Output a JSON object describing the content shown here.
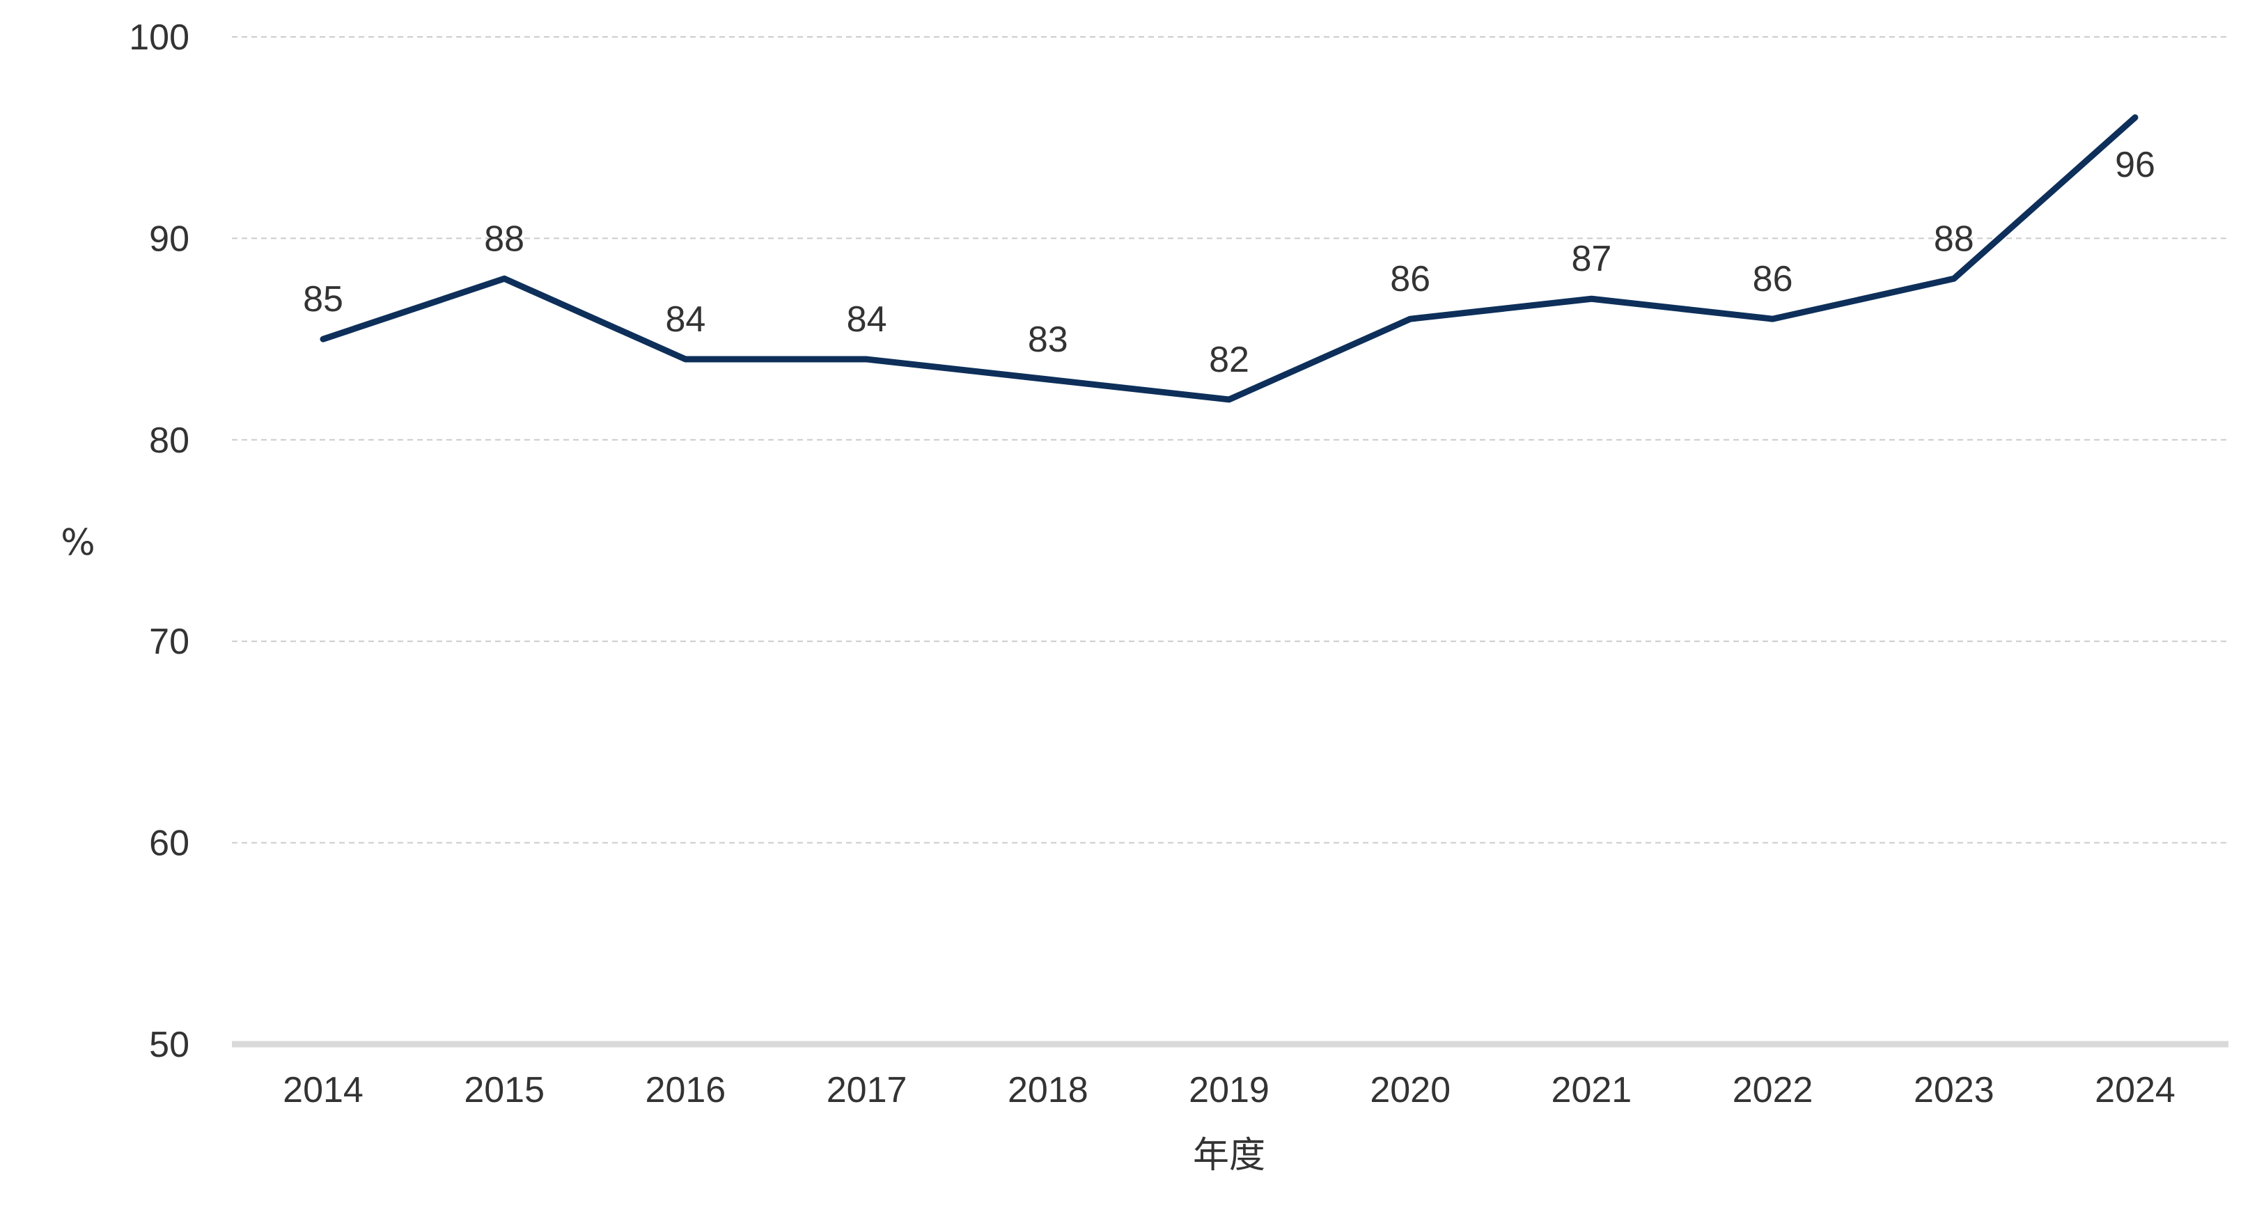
{
  "chart_data": {
    "type": "line",
    "title": "",
    "xlabel": "年度",
    "ylabel": "%",
    "categories": [
      "2014",
      "2015",
      "2016",
      "2017",
      "2018",
      "2019",
      "2020",
      "2021",
      "2022",
      "2023",
      "2024"
    ],
    "series": [
      {
        "values": [
          85,
          88,
          84,
          84,
          83,
          82,
          86,
          87,
          86,
          88,
          96
        ],
        "color": "#0d2f5a"
      }
    ],
    "data_labels": [
      "85",
      "88",
      "84",
      "84",
      "83",
      "82",
      "86",
      "87",
      "86",
      "88",
      "96"
    ],
    "ylim": [
      50,
      100
    ],
    "yticks": [
      50,
      60,
      70,
      80,
      90,
      100
    ],
    "ytick_labels": [
      "50",
      "60",
      "70",
      "80",
      "90",
      "100"
    ],
    "grid": true,
    "grid_style": "dashed",
    "grid_color": "#cccccc",
    "baseline_color": "#d9d9d9",
    "text_color": "#333333",
    "legend": "none"
  }
}
